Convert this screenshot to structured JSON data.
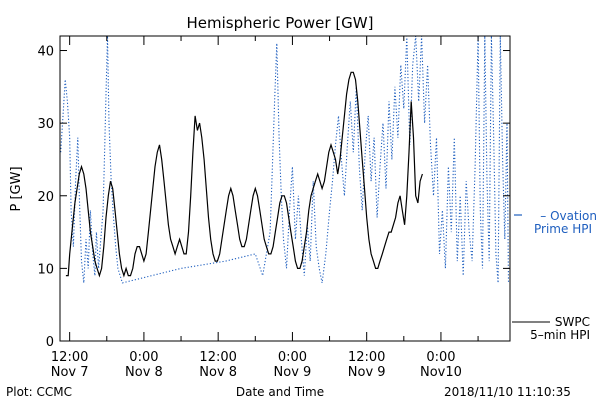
{
  "chart_data": {
    "type": "line",
    "title": "Hemispheric Power [GW]",
    "ylabel": "P [GW]",
    "xlabel": "Date and Time",
    "ylim": [
      0,
      42
    ],
    "xlim": [
      -1.3,
      59.3
    ],
    "yticks": [
      0,
      10,
      20,
      30,
      40
    ],
    "xticks": [
      {
        "x": 0,
        "line1": "12:00",
        "line2": "Nov 7"
      },
      {
        "x": 10,
        "line1": "0:00",
        "line2": "Nov 8"
      },
      {
        "x": 20,
        "line1": "12:00",
        "line2": "Nov 8"
      },
      {
        "x": 30,
        "line1": "0:00",
        "line2": "Nov 9"
      },
      {
        "x": 40,
        "line1": "12:00",
        "line2": "Nov 9"
      },
      {
        "x": 50,
        "line1": "0:00",
        "line2": "Nov10"
      }
    ],
    "grid": false,
    "series": [
      {
        "name": "Ovation Prime HPI",
        "legend_lines": [
          "– Ovation",
          "Prime HPI"
        ],
        "color": "#1f5fbf",
        "style": "dotted",
        "points": [
          [
            -1.2,
            26
          ],
          [
            -0.9,
            31
          ],
          [
            -0.6,
            36
          ],
          [
            -0.3,
            33
          ],
          [
            0,
            28
          ],
          [
            0.2,
            18
          ],
          [
            0.5,
            13
          ],
          [
            0.8,
            22
          ],
          [
            1.1,
            28
          ],
          [
            1.3,
            20
          ],
          [
            1.6,
            11
          ],
          [
            1.9,
            8
          ],
          [
            2.2,
            14
          ],
          [
            2.5,
            10
          ],
          [
            2.8,
            18
          ],
          [
            3.1,
            12
          ],
          [
            3.4,
            9
          ],
          [
            3.6,
            15
          ],
          [
            3.9,
            10
          ],
          [
            4.2,
            14
          ],
          [
            4.5,
            18
          ],
          [
            4.7,
            26
          ],
          [
            4.9,
            34
          ],
          [
            5.1,
            42
          ],
          [
            5.3,
            30
          ],
          [
            5.6,
            22
          ],
          [
            5.9,
            17
          ],
          [
            6.2,
            13
          ],
          [
            6.5,
            10
          ],
          [
            6.8,
            9
          ],
          [
            7.1,
            8
          ],
          [
            15,
            10
          ],
          [
            21,
            11
          ],
          [
            25,
            12
          ],
          [
            26,
            9
          ],
          [
            27,
            15
          ],
          [
            27.3,
            24
          ],
          [
            27.6,
            33
          ],
          [
            27.9,
            41
          ],
          [
            28.2,
            28
          ],
          [
            28.5,
            20
          ],
          [
            28.8,
            14
          ],
          [
            29.2,
            10
          ],
          [
            29.6,
            18
          ],
          [
            30,
            24
          ],
          [
            30.4,
            14
          ],
          [
            30.8,
            20
          ],
          [
            31.2,
            14
          ],
          [
            31.6,
            9
          ],
          [
            32,
            16
          ],
          [
            32.4,
            11
          ],
          [
            32.8,
            22
          ],
          [
            33.2,
            13
          ],
          [
            33.6,
            10
          ],
          [
            34,
            8
          ],
          [
            34.5,
            12
          ],
          [
            35,
            18
          ],
          [
            35.4,
            22
          ],
          [
            35.8,
            27
          ],
          [
            36.2,
            31
          ],
          [
            36.6,
            25
          ],
          [
            37,
            20
          ],
          [
            37.4,
            27
          ],
          [
            37.8,
            33
          ],
          [
            38.2,
            26
          ],
          [
            38.6,
            35
          ],
          [
            39,
            24
          ],
          [
            39.4,
            18
          ],
          [
            39.8,
            26
          ],
          [
            40.2,
            31
          ],
          [
            40.6,
            22
          ],
          [
            41,
            28
          ],
          [
            41.4,
            17
          ],
          [
            41.8,
            24
          ],
          [
            42.2,
            30
          ],
          [
            42.6,
            21
          ],
          [
            43,
            33
          ],
          [
            43.4,
            25
          ],
          [
            43.8,
            35
          ],
          [
            44.2,
            28
          ],
          [
            44.6,
            38
          ],
          [
            45,
            32
          ],
          [
            45.4,
            42
          ],
          [
            45.8,
            27
          ],
          [
            46.2,
            38
          ],
          [
            46.6,
            42
          ],
          [
            47,
            33
          ],
          [
            47.4,
            42
          ],
          [
            47.8,
            30
          ],
          [
            48.2,
            38
          ],
          [
            48.6,
            27
          ],
          [
            49,
            20
          ],
          [
            49.4,
            28
          ],
          [
            49.8,
            12
          ],
          [
            50.2,
            18
          ],
          [
            50.6,
            10
          ],
          [
            51,
            24
          ],
          [
            51.4,
            15
          ],
          [
            51.8,
            28
          ],
          [
            52.2,
            11
          ],
          [
            52.6,
            20
          ],
          [
            53,
            9
          ],
          [
            53.4,
            22
          ],
          [
            53.8,
            15
          ],
          [
            54.2,
            11
          ],
          [
            54.6,
            24
          ],
          [
            55,
            42
          ],
          [
            55.3,
            18
          ],
          [
            55.6,
            10
          ],
          [
            55.9,
            42
          ],
          [
            56.2,
            22
          ],
          [
            56.5,
            11
          ],
          [
            56.8,
            42
          ],
          [
            57.1,
            28
          ],
          [
            57.4,
            12
          ],
          [
            57.7,
            8
          ],
          [
            58,
            42
          ],
          [
            58.3,
            25
          ],
          [
            58.6,
            14
          ],
          [
            58.9,
            30
          ],
          [
            59.1,
            8
          ]
        ]
      },
      {
        "name": "SWPC 5-min HPI",
        "legend_lines": [
          "SWPC",
          "5–min HPI"
        ],
        "color": "#000000",
        "style": "solid",
        "points": [
          [
            -0.5,
            9
          ],
          [
            -0.2,
            9
          ],
          [
            0,
            12
          ],
          [
            0.3,
            15
          ],
          [
            0.7,
            19
          ],
          [
            1,
            21
          ],
          [
            1.3,
            23
          ],
          [
            1.6,
            24
          ],
          [
            1.9,
            23
          ],
          [
            2.2,
            21
          ],
          [
            2.5,
            18
          ],
          [
            2.8,
            15
          ],
          [
            3.1,
            13
          ],
          [
            3.4,
            11
          ],
          [
            3.7,
            10
          ],
          [
            4,
            9
          ],
          [
            4.3,
            10
          ],
          [
            4.6,
            13
          ],
          [
            4.9,
            17
          ],
          [
            5.2,
            20
          ],
          [
            5.5,
            22
          ],
          [
            5.8,
            21
          ],
          [
            6.1,
            18
          ],
          [
            6.4,
            15
          ],
          [
            6.7,
            12
          ],
          [
            7,
            10
          ],
          [
            7.3,
            9
          ],
          [
            7.6,
            10
          ],
          [
            7.9,
            9
          ],
          [
            8.2,
            9
          ],
          [
            8.5,
            10
          ],
          [
            8.8,
            12
          ],
          [
            9.1,
            13
          ],
          [
            9.4,
            13
          ],
          [
            9.7,
            12
          ],
          [
            10,
            11
          ],
          [
            10.3,
            12
          ],
          [
            10.6,
            15
          ],
          [
            10.9,
            18
          ],
          [
            11.2,
            21
          ],
          [
            11.5,
            24
          ],
          [
            11.8,
            26
          ],
          [
            12.1,
            27
          ],
          [
            12.4,
            25
          ],
          [
            12.7,
            22
          ],
          [
            13,
            19
          ],
          [
            13.3,
            16
          ],
          [
            13.6,
            14
          ],
          [
            13.9,
            13
          ],
          [
            14.2,
            12
          ],
          [
            14.5,
            13
          ],
          [
            14.8,
            14
          ],
          [
            15.1,
            13
          ],
          [
            15.4,
            12
          ],
          [
            15.7,
            12
          ],
          [
            16,
            15
          ],
          [
            16.3,
            20
          ],
          [
            16.6,
            26
          ],
          [
            16.9,
            31
          ],
          [
            17.2,
            29
          ],
          [
            17.5,
            30
          ],
          [
            17.8,
            28
          ],
          [
            18.1,
            25
          ],
          [
            18.4,
            21
          ],
          [
            18.7,
            17
          ],
          [
            19,
            14
          ],
          [
            19.3,
            12
          ],
          [
            19.6,
            11
          ],
          [
            19.9,
            11
          ],
          [
            20.2,
            12
          ],
          [
            20.5,
            14
          ],
          [
            20.8,
            16
          ],
          [
            21.1,
            18
          ],
          [
            21.4,
            20
          ],
          [
            21.7,
            21
          ],
          [
            22,
            20
          ],
          [
            22.3,
            18
          ],
          [
            22.6,
            16
          ],
          [
            22.9,
            14
          ],
          [
            23.2,
            13
          ],
          [
            23.5,
            13
          ],
          [
            23.8,
            14
          ],
          [
            24.1,
            16
          ],
          [
            24.4,
            18
          ],
          [
            24.7,
            20
          ],
          [
            25,
            21
          ],
          [
            25.3,
            20
          ],
          [
            25.6,
            18
          ],
          [
            25.9,
            16
          ],
          [
            26.2,
            14
          ],
          [
            26.5,
            13
          ],
          [
            26.8,
            12
          ],
          [
            27.1,
            12
          ],
          [
            27.4,
            13
          ],
          [
            27.7,
            15
          ],
          [
            28,
            17
          ],
          [
            28.3,
            19
          ],
          [
            28.6,
            20
          ],
          [
            28.9,
            20
          ],
          [
            29.2,
            19
          ],
          [
            29.5,
            17
          ],
          [
            29.8,
            15
          ],
          [
            30.1,
            13
          ],
          [
            30.4,
            11
          ],
          [
            30.7,
            10
          ],
          [
            31,
            10
          ],
          [
            31.3,
            11
          ],
          [
            31.6,
            13
          ],
          [
            31.9,
            15
          ],
          [
            32.2,
            18
          ],
          [
            32.5,
            20
          ],
          [
            32.8,
            21
          ],
          [
            33.1,
            22
          ],
          [
            33.4,
            23
          ],
          [
            33.7,
            22
          ],
          [
            34,
            21
          ],
          [
            34.3,
            22
          ],
          [
            34.6,
            24
          ],
          [
            34.9,
            26
          ],
          [
            35.2,
            27
          ],
          [
            35.5,
            26
          ],
          [
            35.8,
            25
          ],
          [
            36.1,
            23
          ],
          [
            36.4,
            25
          ],
          [
            36.7,
            28
          ],
          [
            37,
            31
          ],
          [
            37.3,
            34
          ],
          [
            37.6,
            36
          ],
          [
            37.9,
            37
          ],
          [
            38.2,
            37
          ],
          [
            38.5,
            36
          ],
          [
            38.8,
            33
          ],
          [
            39.1,
            29
          ],
          [
            39.4,
            25
          ],
          [
            39.7,
            21
          ],
          [
            40,
            17
          ],
          [
            40.3,
            14
          ],
          [
            40.6,
            12
          ],
          [
            40.9,
            11
          ],
          [
            41.2,
            10
          ],
          [
            41.5,
            10
          ],
          [
            41.8,
            11
          ],
          [
            42.1,
            12
          ],
          [
            42.4,
            13
          ],
          [
            42.7,
            14
          ],
          [
            43,
            15
          ],
          [
            43.3,
            15
          ],
          [
            43.6,
            16
          ],
          [
            43.9,
            17
          ],
          [
            44.2,
            19
          ],
          [
            44.5,
            20
          ],
          [
            44.8,
            18
          ],
          [
            45.1,
            16
          ],
          [
            45.4,
            20
          ],
          [
            45.7,
            26
          ],
          [
            46,
            33
          ],
          [
            46.3,
            28
          ],
          [
            46.6,
            20
          ],
          [
            46.9,
            19
          ],
          [
            47.2,
            22
          ],
          [
            47.5,
            23
          ]
        ]
      }
    ]
  },
  "plot_source": "Plot: CCMC",
  "timestamp": "2018/11/10 11:10:35"
}
